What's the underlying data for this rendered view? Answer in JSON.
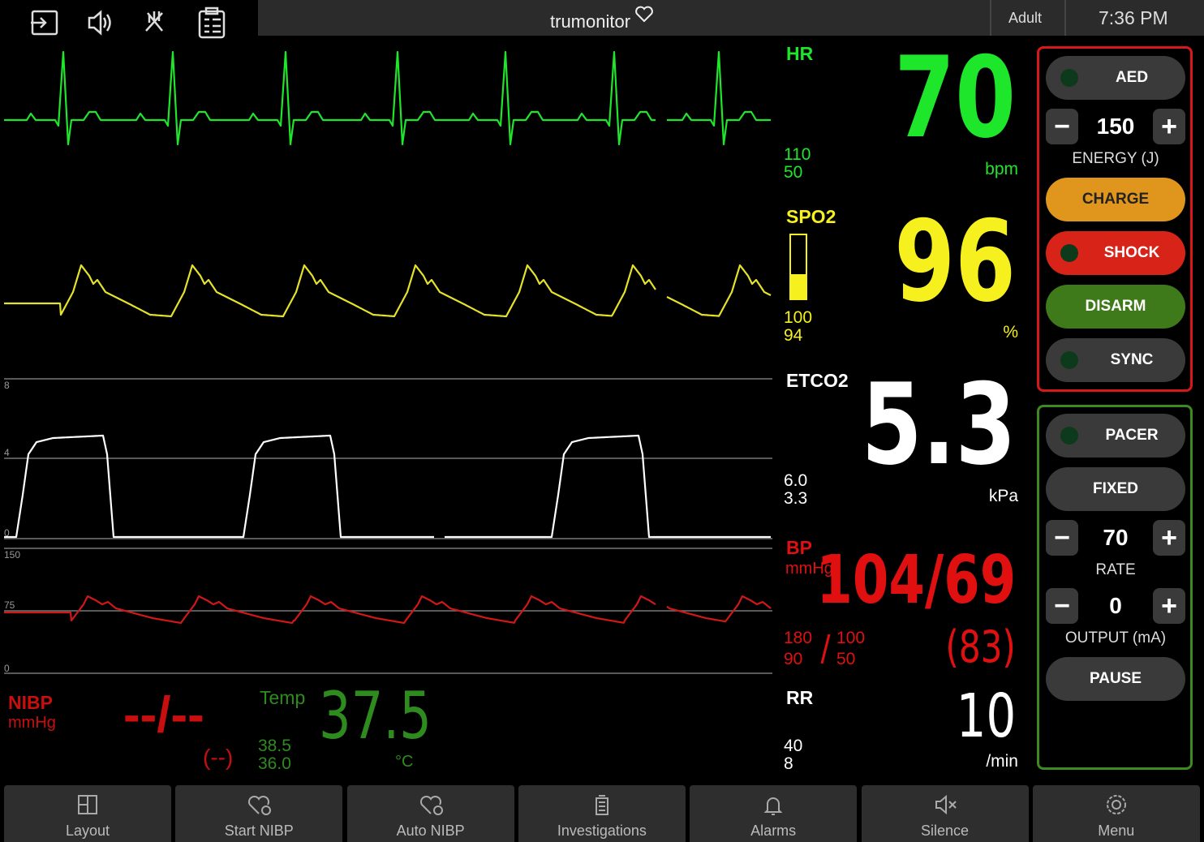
{
  "header": {
    "brand": "trumonitor",
    "patient_type": "Adult",
    "time": "7:36 PM"
  },
  "vitals": {
    "hr": {
      "label": "HR",
      "value": "70",
      "high": "110",
      "low": "50",
      "unit": "bpm"
    },
    "spo2": {
      "label": "SPO2",
      "value": "96",
      "high": "100",
      "low": "94",
      "unit": "%"
    },
    "etco2": {
      "label": "ETCO2",
      "value": "5.3",
      "high": "6.0",
      "low": "3.3",
      "unit": "kPa"
    },
    "bp": {
      "label": "BP",
      "unit": "mmHg",
      "value": "104/69",
      "sys_high": "180",
      "sys_low": "90",
      "dia_high": "100",
      "dia_low": "50",
      "mean": "(83)"
    },
    "rr": {
      "label": "RR",
      "value": "10",
      "high": "40",
      "low": "8",
      "unit": "/min"
    },
    "nibp": {
      "label": "NIBP",
      "unit": "mmHg",
      "value": "--/--",
      "mean": "(--)"
    },
    "temp": {
      "label": "Temp",
      "value": "37.5",
      "high": "38.5",
      "low": "36.0",
      "unit": "°C"
    }
  },
  "waveform_scales": {
    "etco2": [
      "8",
      "4",
      "0"
    ],
    "bp": [
      "150",
      "75",
      "0"
    ]
  },
  "defib": {
    "aed": "AED",
    "energy_value": "150",
    "energy_label": "ENERGY (J)",
    "charge": "CHARGE",
    "shock": "SHOCK",
    "disarm": "DISARM",
    "sync": "SYNC"
  },
  "pacer": {
    "pacer": "PACER",
    "mode": "FIXED",
    "rate_value": "70",
    "rate_label": "RATE",
    "output_value": "0",
    "output_label": "OUTPUT (mA)",
    "pause": "PAUSE"
  },
  "toolbar": [
    "Layout",
    "Start NIBP",
    "Auto NIBP",
    "Investigations",
    "Alarms",
    "Silence",
    "Menu"
  ]
}
